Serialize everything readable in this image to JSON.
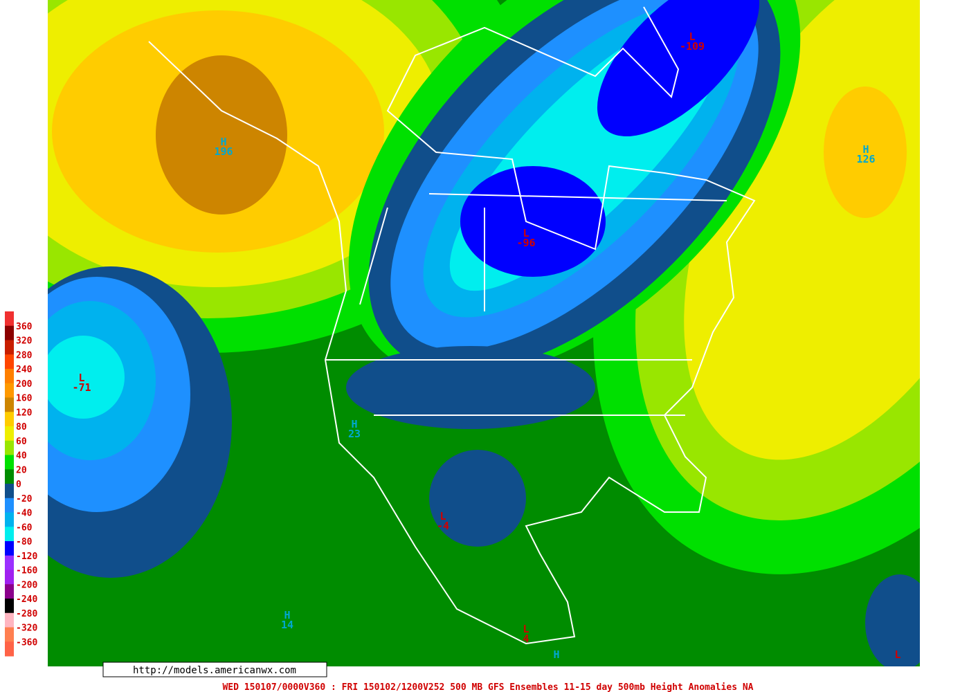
{
  "legend": {
    "levels": [
      360,
      320,
      280,
      240,
      200,
      160,
      120,
      80,
      60,
      40,
      20,
      0,
      -20,
      -40,
      -60,
      -80,
      -120,
      -160,
      -200,
      -240,
      -280,
      -320,
      -360
    ],
    "colors": [
      "#f03030",
      "#8b0000",
      "#c81e00",
      "#ff4500",
      "#ff7f00",
      "#ff9900",
      "#cd8500",
      "#ffcc00",
      "#eeee00",
      "#99e600",
      "#00e000",
      "#008c00",
      "#104e8b",
      "#1e90ff",
      "#00b2ee",
      "#00eeee",
      "#0000ff",
      "#9b30ff",
      "#a020f0",
      "#8b008b",
      "#000000",
      "#ffb6c1",
      "#ff7f50",
      "#ff6347"
    ]
  },
  "markers": [
    {
      "label": "H",
      "value": 196
    },
    {
      "label": "H",
      "value": 126
    },
    {
      "label": "L",
      "value": -109
    },
    {
      "label": "L",
      "value": -96
    },
    {
      "label": "L",
      "value": -71
    },
    {
      "label": "H",
      "value": 23
    },
    {
      "label": "L",
      "value": -4
    },
    {
      "label": "H",
      "value": 14
    },
    {
      "label": "L",
      "value": 4
    },
    {
      "label": "H"
    },
    {
      "label": "L"
    }
  ],
  "source": "http://models.americanwx.com",
  "footer": "WED 150107/0000V360 : FRI 150102/1200V252   500 MB GFS Ensembles 11-15 day 500mb Height Anomalies NA"
}
